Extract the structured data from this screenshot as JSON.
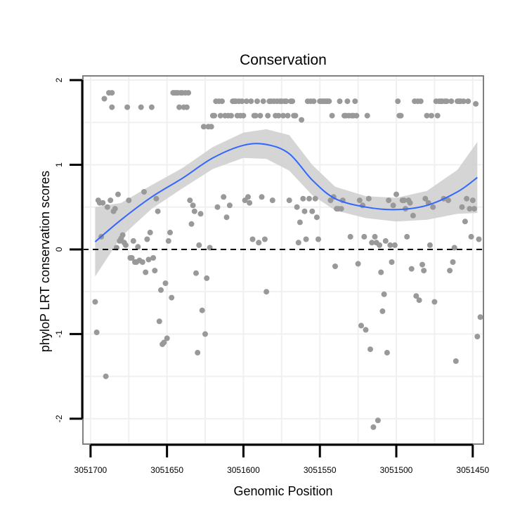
{
  "chart_data": {
    "type": "scatter",
    "title": "Conservation",
    "xlabel": "Genomic Position",
    "ylabel": "phyloP LRT conservation scores",
    "xlim": [
      3051705,
      3051443
    ],
    "ylim": [
      -2.3,
      2.05
    ],
    "x_reversed": true,
    "x_ticks": [
      3051700,
      3051650,
      3051600,
      3051550,
      3051500,
      3051450
    ],
    "x_tick_labels": [
      "3051700",
      "3051650",
      "3051600",
      "3051550",
      "3051500",
      "3051450"
    ],
    "y_ticks": [
      -2,
      -1,
      0,
      1,
      2
    ],
    "y_tick_labels": [
      "-2",
      "-1",
      "0",
      "1",
      "2"
    ],
    "reference_line": {
      "y": 0,
      "style": "dashed",
      "color": "#000000"
    },
    "grid": true,
    "colors": {
      "points": "#999999",
      "smooth": "#3366ff",
      "band": "#d0d0d0",
      "grid": "#f0f0f0",
      "panel_border": "#808080"
    },
    "smooth": {
      "x": [
        3051697,
        3051680,
        3051660,
        3051640,
        3051620,
        3051600,
        3051585,
        3051570,
        3051555,
        3051540,
        3051520,
        3051500,
        3051480,
        3051460,
        3051447
      ],
      "y": [
        0.09,
        0.35,
        0.62,
        0.84,
        1.08,
        1.23,
        1.24,
        1.13,
        0.82,
        0.6,
        0.5,
        0.47,
        0.52,
        0.68,
        0.85
      ],
      "ymin": [
        -0.32,
        0.15,
        0.48,
        0.72,
        0.95,
        1.08,
        1.07,
        0.93,
        0.64,
        0.46,
        0.37,
        0.33,
        0.35,
        0.42,
        0.43
      ],
      "ymax": [
        0.5,
        0.55,
        0.76,
        0.96,
        1.21,
        1.38,
        1.42,
        1.35,
        1.0,
        0.74,
        0.63,
        0.61,
        0.69,
        0.94,
        1.27
      ]
    },
    "points": [
      [
        3051697,
        -0.62
      ],
      [
        3051696,
        -0.98
      ],
      [
        3051695,
        0.58
      ],
      [
        3051694,
        0.55
      ],
      [
        3051693,
        0.15
      ],
      [
        3051692,
        0.55
      ],
      [
        3051691,
        1.78
      ],
      [
        3051690,
        -1.5
      ],
      [
        3051689,
        0.5
      ],
      [
        3051688,
        1.85
      ],
      [
        3051687,
        0.58
      ],
      [
        3051686,
        1.85
      ],
      [
        3051686,
        1.68
      ],
      [
        3051685,
        0.45
      ],
      [
        3051684,
        0.48
      ],
      [
        3051683,
        0.02
      ],
      [
        3051682,
        0.65
      ],
      [
        3051681,
        0.1
      ],
      [
        3051680,
        0.13
      ],
      [
        3051679,
        0.17
      ],
      [
        3051678,
        0.08
      ],
      [
        3051677,
        0.05
      ],
      [
        3051676,
        1.68
      ],
      [
        3051675,
        0.58
      ],
      [
        3051674,
        -0.1
      ],
      [
        3051673,
        -0.1
      ],
      [
        3051672,
        0.1
      ],
      [
        3051671,
        -0.15
      ],
      [
        3051670,
        -0.15
      ],
      [
        3051669,
        0.03
      ],
      [
        3051668,
        -0.13
      ],
      [
        3051667,
        1.68
      ],
      [
        3051666,
        -0.15
      ],
      [
        3051665,
        0.68
      ],
      [
        3051664,
        -0.27
      ],
      [
        3051663,
        0.12
      ],
      [
        3051662,
        -0.12
      ],
      [
        3051661,
        0.2
      ],
      [
        3051660,
        1.68
      ],
      [
        3051659,
        -0.1
      ],
      [
        3051658,
        -0.25
      ],
      [
        3051657,
        0.6
      ],
      [
        3051656,
        0.45
      ],
      [
        3051655,
        -0.85
      ],
      [
        3051654,
        -0.48
      ],
      [
        3051653,
        -1.12
      ],
      [
        3051652,
        -1.1
      ],
      [
        3051651,
        -0.4
      ],
      [
        3051650,
        -1.05
      ],
      [
        3051649,
        0.1
      ],
      [
        3051648,
        0.2
      ],
      [
        3051647,
        -0.57
      ],
      [
        3051646,
        1.85
      ],
      [
        3051645,
        1.85
      ],
      [
        3051644,
        1.85
      ],
      [
        3051643,
        1.85
      ],
      [
        3051642,
        1.68
      ],
      [
        3051641,
        1.85
      ],
      [
        3051640,
        1.85
      ],
      [
        3051639,
        1.68
      ],
      [
        3051638,
        1.85
      ],
      [
        3051637,
        1.68
      ],
      [
        3051636,
        1.85
      ],
      [
        3051635,
        0.58
      ],
      [
        3051634,
        0.3
      ],
      [
        3051633,
        0.52
      ],
      [
        3051632,
        0.45
      ],
      [
        3051631,
        -0.28
      ],
      [
        3051630,
        -1.22
      ],
      [
        3051629,
        0.05
      ],
      [
        3051628,
        0.42
      ],
      [
        3051627,
        -0.72
      ],
      [
        3051626,
        1.45
      ],
      [
        3051625,
        -1.0
      ],
      [
        3051624,
        -0.34
      ],
      [
        3051623,
        1.45
      ],
      [
        3051622,
        0.02
      ],
      [
        3051621,
        1.45
      ],
      [
        3051620,
        1.58
      ],
      [
        3051619,
        1.58
      ],
      [
        3051618,
        1.75
      ],
      [
        3051617,
        0.5
      ],
      [
        3051616,
        1.75
      ],
      [
        3051615,
        1.58
      ],
      [
        3051614,
        1.75
      ],
      [
        3051613,
        0.62
      ],
      [
        3051612,
        1.58
      ],
      [
        3051611,
        0.38
      ],
      [
        3051610,
        1.58
      ],
      [
        3051609,
        0.52
      ],
      [
        3051608,
        1.58
      ],
      [
        3051607,
        1.75
      ],
      [
        3051606,
        1.75
      ],
      [
        3051605,
        1.75
      ],
      [
        3051604,
        1.58
      ],
      [
        3051603,
        1.75
      ],
      [
        3051602,
        1.58
      ],
      [
        3051601,
        1.75
      ],
      [
        3051600,
        1.58
      ],
      [
        3051599,
        0.58
      ],
      [
        3051598,
        1.75
      ],
      [
        3051597,
        0.62
      ],
      [
        3051596,
        0.55
      ],
      [
        3051595,
        1.75
      ],
      [
        3051594,
        0.12
      ],
      [
        3051593,
        1.58
      ],
      [
        3051592,
        1.58
      ],
      [
        3051591,
        1.75
      ],
      [
        3051590,
        0.08
      ],
      [
        3051589,
        1.58
      ],
      [
        3051588,
        0.62
      ],
      [
        3051587,
        1.75
      ],
      [
        3051586,
        0.12
      ],
      [
        3051585,
        -0.5
      ],
      [
        3051584,
        1.58
      ],
      [
        3051583,
        1.75
      ],
      [
        3051582,
        1.75
      ],
      [
        3051581,
        0.58
      ],
      [
        3051580,
        1.75
      ],
      [
        3051579,
        1.58
      ],
      [
        3051578,
        1.75
      ],
      [
        3051577,
        1.58
      ],
      [
        3051576,
        1.75
      ],
      [
        3051575,
        1.75
      ],
      [
        3051574,
        1.58
      ],
      [
        3051573,
        1.75
      ],
      [
        3051572,
        1.75
      ],
      [
        3051571,
        1.58
      ],
      [
        3051570,
        0.58
      ],
      [
        3051569,
        1.75
      ],
      [
        3051568,
        1.75
      ],
      [
        3051567,
        1.58
      ],
      [
        3051566,
        1.58
      ],
      [
        3051565,
        0.5
      ],
      [
        3051564,
        0.08
      ],
      [
        3051563,
        0.32
      ],
      [
        3051562,
        1.53
      ],
      [
        3051561,
        0.6
      ],
      [
        3051560,
        0.45
      ],
      [
        3051559,
        0.12
      ],
      [
        3051558,
        1.75
      ],
      [
        3051557,
        0.6
      ],
      [
        3051556,
        1.75
      ],
      [
        3051555,
        0.45
      ],
      [
        3051554,
        1.75
      ],
      [
        3051553,
        0.6
      ],
      [
        3051552,
        0.38
      ],
      [
        3051551,
        0.12
      ],
      [
        3051550,
        1.75
      ],
      [
        3051549,
        1.75
      ],
      [
        3051548,
        1.75
      ],
      [
        3051547,
        1.75
      ],
      [
        3051546,
        1.75
      ],
      [
        3051545,
        1.75
      ],
      [
        3051544,
        1.75
      ],
      [
        3051543,
        0.58
      ],
      [
        3051542,
        1.58
      ],
      [
        3051541,
        0.62
      ],
      [
        3051540,
        -0.2
      ],
      [
        3051539,
        0.48
      ],
      [
        3051538,
        0.48
      ],
      [
        3051537,
        1.75
      ],
      [
        3051536,
        0.48
      ],
      [
        3051535,
        0.58
      ],
      [
        3051534,
        1.58
      ],
      [
        3051533,
        1.58
      ],
      [
        3051532,
        1.75
      ],
      [
        3051531,
        1.58
      ],
      [
        3051530,
        0.15
      ],
      [
        3051529,
        1.58
      ],
      [
        3051528,
        1.58
      ],
      [
        3051527,
        1.75
      ],
      [
        3051526,
        1.58
      ],
      [
        3051525,
        -0.17
      ],
      [
        3051524,
        0.58
      ],
      [
        3051523,
        -0.9
      ],
      [
        3051522,
        0.52
      ],
      [
        3051521,
        0.15
      ],
      [
        3051520,
        -0.95
      ],
      [
        3051519,
        1.58
      ],
      [
        3051518,
        0.6
      ],
      [
        3051517,
        -1.18
      ],
      [
        3051516,
        0.08
      ],
      [
        3051515,
        -2.1
      ],
      [
        3051514,
        0.15
      ],
      [
        3051513,
        0.08
      ],
      [
        3051512,
        -2.02
      ],
      [
        3051511,
        0.05
      ],
      [
        3051510,
        -0.27
      ],
      [
        3051509,
        -0.73
      ],
      [
        3051508,
        -0.53
      ],
      [
        3051507,
        0.1
      ],
      [
        3051506,
        -1.22
      ],
      [
        3051505,
        0.58
      ],
      [
        3051504,
        0.05
      ],
      [
        3051503,
        -0.15
      ],
      [
        3051502,
        0.52
      ],
      [
        3051501,
        0.05
      ],
      [
        3051500,
        0.65
      ],
      [
        3051499,
        1.75
      ],
      [
        3051498,
        1.58
      ],
      [
        3051497,
        1.58
      ],
      [
        3051496,
        0.58
      ],
      [
        3051495,
        0.58
      ],
      [
        3051494,
        0.48
      ],
      [
        3051493,
        0.15
      ],
      [
        3051492,
        0.58
      ],
      [
        3051491,
        0.55
      ],
      [
        3051490,
        -0.23
      ],
      [
        3051489,
        0.4
      ],
      [
        3051488,
        1.75
      ],
      [
        3051487,
        -0.55
      ],
      [
        3051486,
        1.75
      ],
      [
        3051485,
        -0.6
      ],
      [
        3051484,
        1.75
      ],
      [
        3051483,
        -0.18
      ],
      [
        3051482,
        -0.25
      ],
      [
        3051481,
        0.6
      ],
      [
        3051480,
        1.58
      ],
      [
        3051479,
        0.55
      ],
      [
        3051478,
        0.05
      ],
      [
        3051477,
        1.58
      ],
      [
        3051476,
        0.5
      ],
      [
        3051475,
        -0.62
      ],
      [
        3051474,
        1.75
      ],
      [
        3051473,
        1.58
      ],
      [
        3051472,
        1.75
      ],
      [
        3051471,
        1.75
      ],
      [
        3051470,
        1.75
      ],
      [
        3051469,
        0.6
      ],
      [
        3051468,
        1.75
      ],
      [
        3051467,
        1.75
      ],
      [
        3051466,
        0.58
      ],
      [
        3051465,
        -0.25
      ],
      [
        3051464,
        1.75
      ],
      [
        3051463,
        -0.15
      ],
      [
        3051462,
        0.02
      ],
      [
        3051461,
        -1.32
      ],
      [
        3051460,
        1.75
      ],
      [
        3051459,
        1.75
      ],
      [
        3051458,
        1.75
      ],
      [
        3051457,
        0.5
      ],
      [
        3051456,
        1.75
      ],
      [
        3051455,
        0.33
      ],
      [
        3051454,
        0.6
      ],
      [
        3051453,
        1.75
      ],
      [
        3051452,
        0.48
      ],
      [
        3051451,
        0.15
      ],
      [
        3051450,
        0.58
      ],
      [
        3051449,
        0.48
      ],
      [
        3051448,
        1.72
      ],
      [
        3051447,
        -1.03
      ],
      [
        3051446,
        0.12
      ],
      [
        3051445,
        -0.8
      ]
    ]
  }
}
